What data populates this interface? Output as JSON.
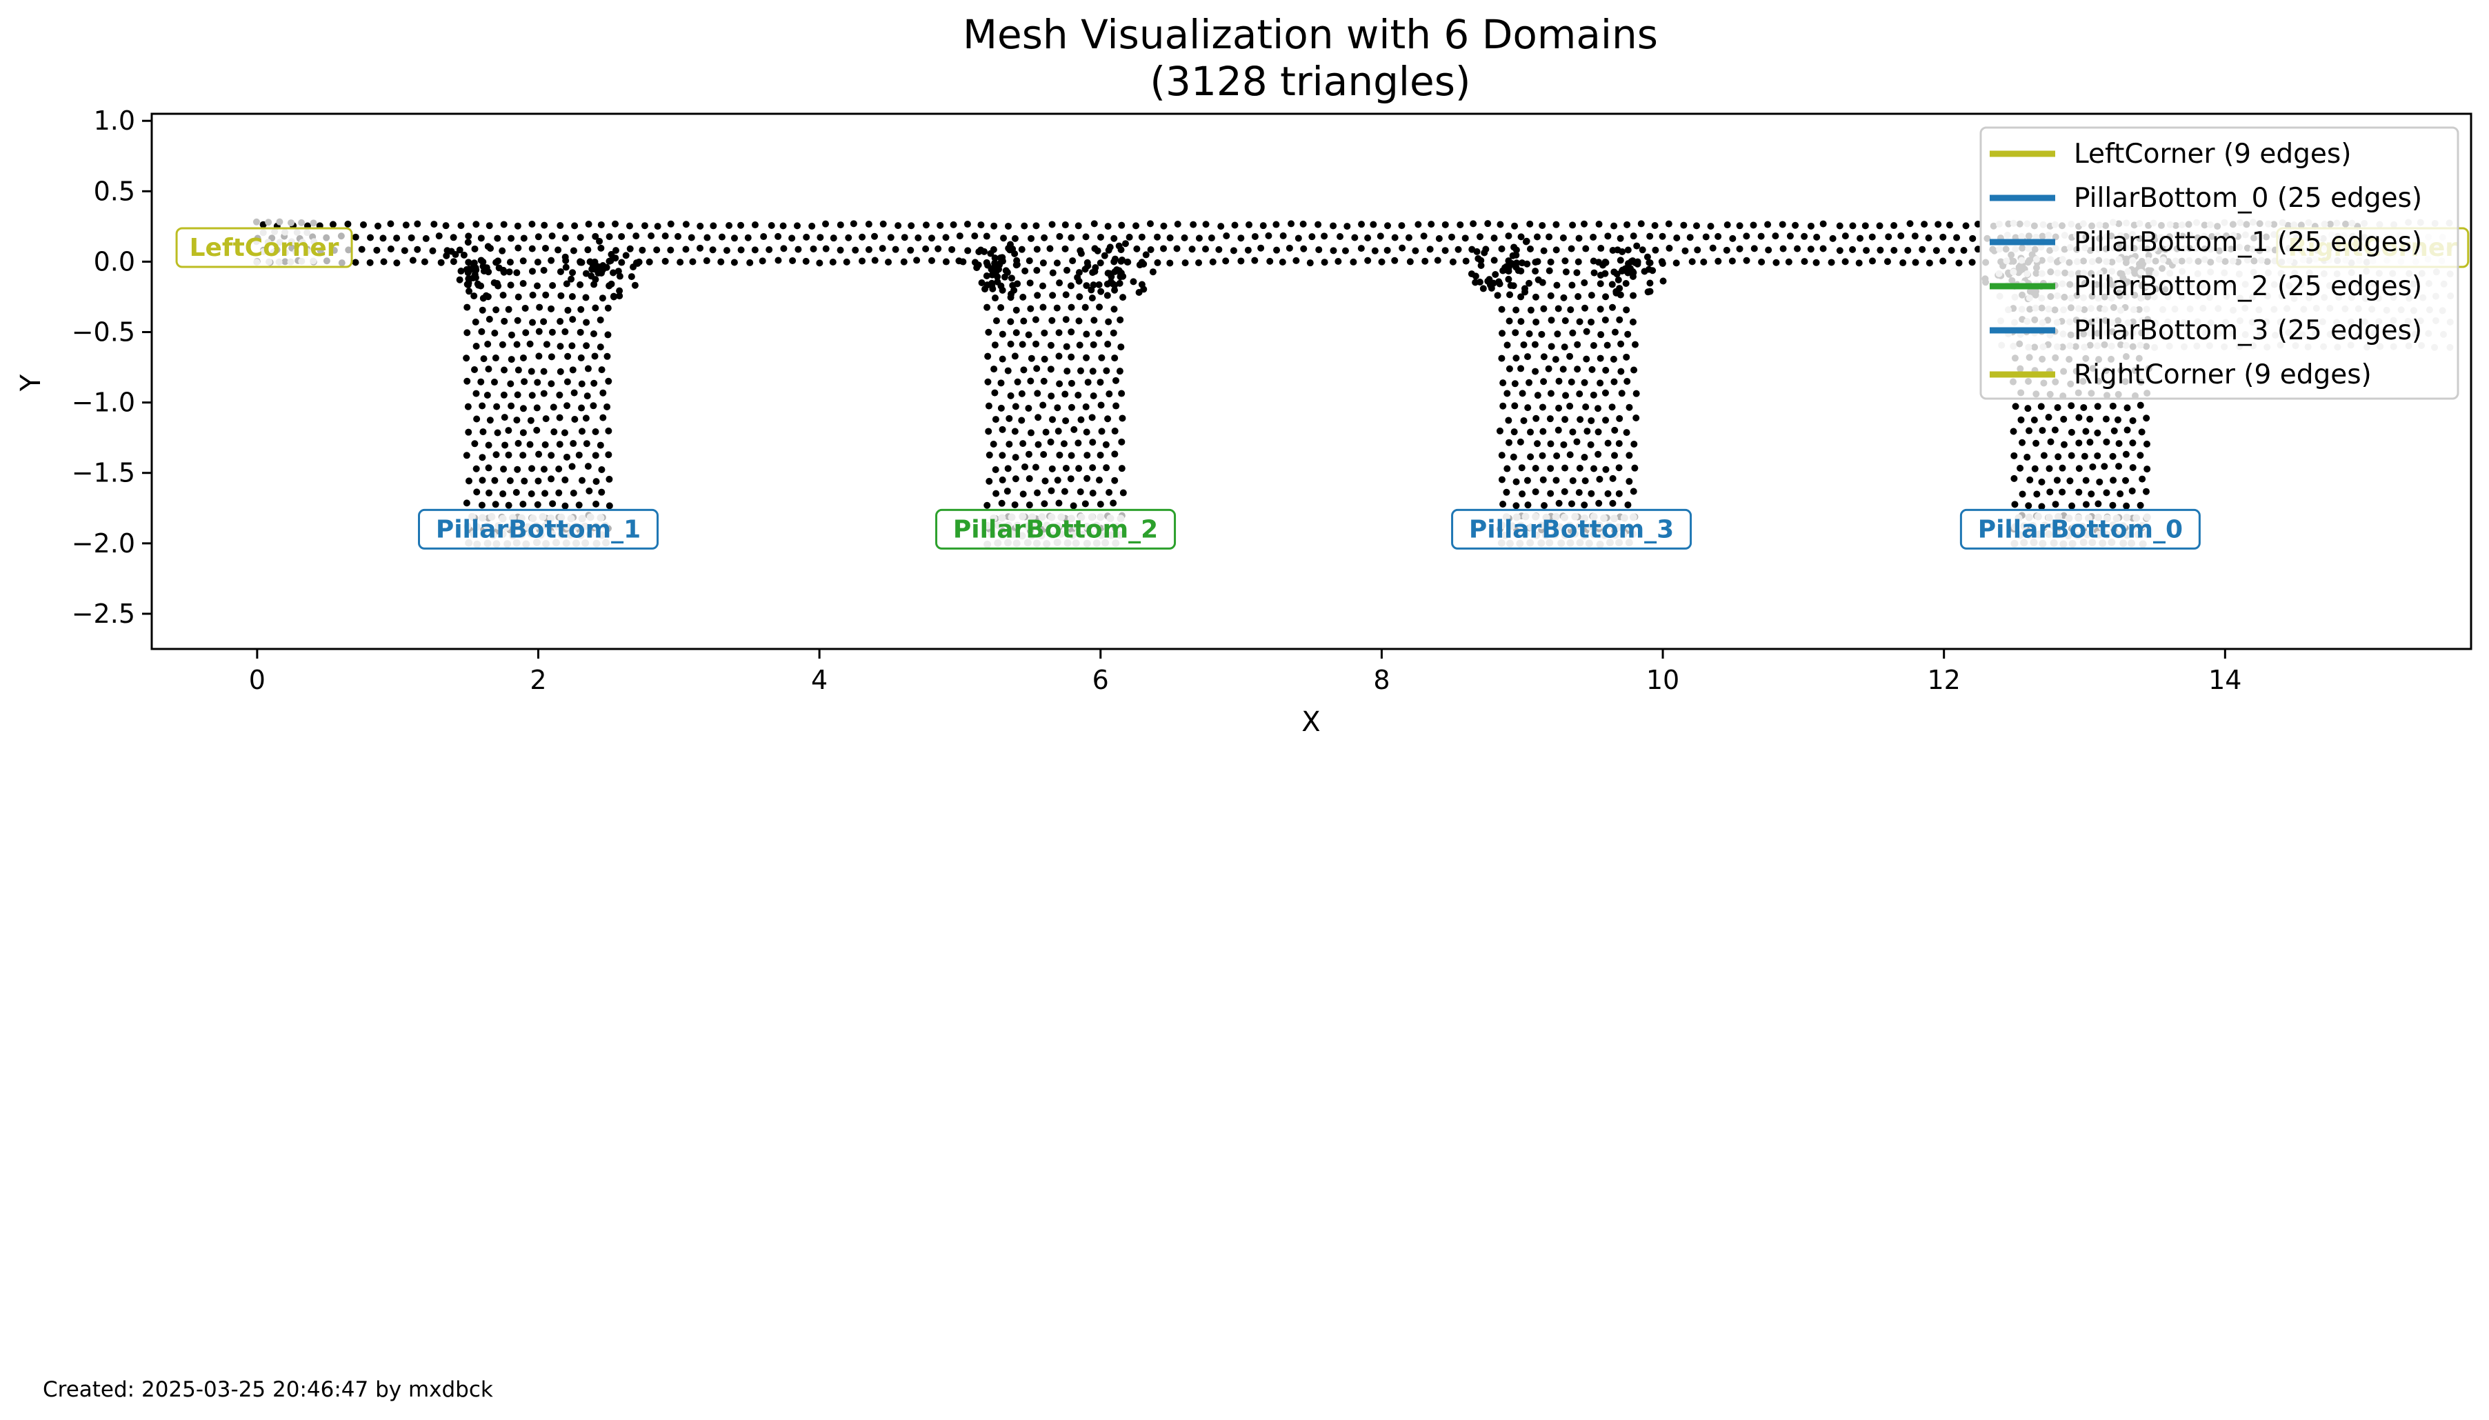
{
  "chart_data": {
    "type": "scatter",
    "title": "Mesh Visualization with 6 Domains",
    "subtitle": "(3128 triangles)",
    "xlabel": "X",
    "ylabel": "Y",
    "xlim": [
      -0.75,
      15.75
    ],
    "ylim": [
      -2.75,
      1.05
    ],
    "xticks": [
      0,
      2,
      4,
      6,
      8,
      10,
      12,
      14
    ],
    "yticks": [
      1.0,
      0.5,
      0.0,
      -0.5,
      -1.0,
      -1.5,
      -2.0,
      -2.5
    ],
    "grid": false,
    "legend_position": "top-right",
    "mesh": {
      "beam": {
        "x": [
          0,
          15
        ],
        "y": [
          0,
          0.3
        ]
      },
      "pillars": [
        {
          "x": [
            1.5,
            2.5
          ],
          "y": [
            -2.0,
            0
          ]
        },
        {
          "x": [
            5.2,
            6.15
          ],
          "y": [
            -2.0,
            0
          ]
        },
        {
          "x": [
            8.85,
            9.8
          ],
          "y": [
            -2.0,
            0
          ]
        },
        {
          "x": [
            12.5,
            13.45
          ],
          "y": [
            -2.0,
            0
          ]
        }
      ],
      "node_color": "#000000",
      "highlight_color": "#c0c0c0"
    },
    "series": [
      {
        "name": "LeftCorner (9 edges)",
        "color": "#bcbd22",
        "label": "LeftCorner",
        "label_x": 0.05,
        "label_y": 0.1
      },
      {
        "name": "PillarBottom_0 (25 edges)",
        "color": "#1f77b4",
        "label": "PillarBottom_0",
        "label_x": 12.97,
        "label_y": -1.9
      },
      {
        "name": "PillarBottom_1 (25 edges)",
        "color": "#1f77b4",
        "label": "PillarBottom_1",
        "label_x": 2.0,
        "label_y": -1.9
      },
      {
        "name": "PillarBottom_2 (25 edges)",
        "color": "#2ca02c",
        "label": "PillarBottom_2",
        "label_x": 5.68,
        "label_y": -1.9
      },
      {
        "name": "PillarBottom_3 (25 edges)",
        "color": "#1f77b4",
        "label": "PillarBottom_3",
        "label_x": 9.35,
        "label_y": -1.9
      },
      {
        "name": "RightCorner (9 edges)",
        "color": "#bcbd22",
        "label": "RightCorner",
        "label_x": 15.05,
        "label_y": 0.1
      }
    ]
  },
  "footer": {
    "created": "Created: 2025-03-25 20:46:47 by mxdbck"
  }
}
